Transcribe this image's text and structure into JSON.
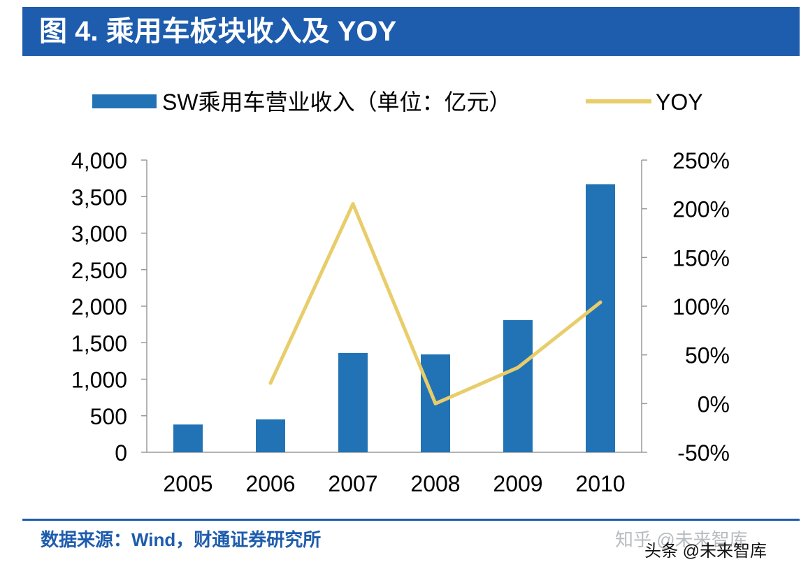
{
  "title": "图 4. 乘用车板块收入及 YOY",
  "source": "数据来源：Wind，财通证券研究所",
  "watermarks": {
    "zhihu": "知乎 @未来智库",
    "toutiao": "头条 @未来智库"
  },
  "colors": {
    "title_bg": "#1e5cad",
    "bar": "#2273b5",
    "line": "#e8cd6a",
    "axis": "#9a9a9a",
    "text": "#000000"
  },
  "chart_data": {
    "type": "bar",
    "categories": [
      "2005",
      "2006",
      "2007",
      "2008",
      "2009",
      "2010"
    ],
    "series": [
      {
        "name": "SW乘用车营业收入（单位：亿元）",
        "type": "bar",
        "axis": "left",
        "values": [
          380,
          450,
          1360,
          1340,
          1810,
          3670
        ]
      },
      {
        "name": "YOY",
        "type": "line",
        "axis": "right",
        "values": [
          null,
          21,
          205,
          0,
          37,
          104
        ]
      }
    ],
    "left_axis": {
      "range": [
        0,
        4000
      ],
      "ticks": [
        "4,000",
        "3,500",
        "3,000",
        "2,500",
        "2,000",
        "1,500",
        "1,000",
        "500",
        "0"
      ]
    },
    "right_axis": {
      "range": [
        -50,
        250
      ],
      "ticks": [
        "250%",
        "200%",
        "150%",
        "100%",
        "50%",
        "0%",
        "-50%"
      ]
    },
    "legend": [
      {
        "label": "SW乘用车营业收入（单位：亿元）",
        "swatch": "bar"
      },
      {
        "label": "YOY",
        "swatch": "line"
      }
    ]
  }
}
